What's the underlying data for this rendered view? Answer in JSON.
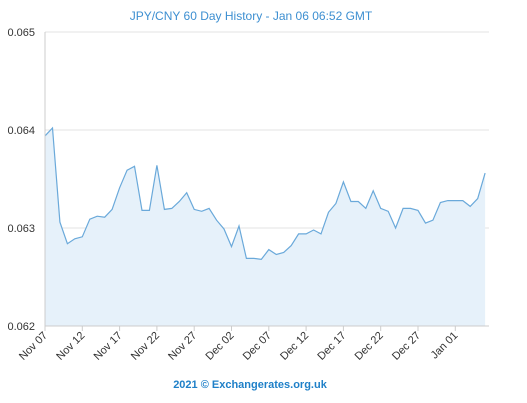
{
  "chart_data": {
    "type": "area",
    "title": "JPY/CNY 60 Day History - Jan 06 06:52 GMT",
    "footer": "2021 © Exchangerates.org.uk",
    "ylim": [
      0.062,
      0.065
    ],
    "yticks": [
      "0.065",
      "0.064",
      "0.063",
      "0.062"
    ],
    "ytick_values": [
      0.065,
      0.064,
      0.063,
      0.062
    ],
    "x_labels": [
      "Nov 07",
      "Nov 12",
      "Nov 17",
      "Nov 22",
      "Nov 27",
      "Dec 02",
      "Dec 07",
      "Dec 12",
      "Dec 17",
      "Dec 22",
      "Dec 27",
      "Jan 01"
    ],
    "x_label_indices": [
      0,
      5,
      10,
      15,
      20,
      25,
      30,
      35,
      40,
      45,
      50,
      55
    ],
    "grid": true,
    "line_color": "#6aa9da",
    "fill_color": "#e6f1fa",
    "series": [
      {
        "values": [
          0.06394,
          0.06402,
          0.06306,
          0.06284,
          0.06289,
          0.06291,
          0.06309,
          0.06312,
          0.06311,
          0.06319,
          0.06341,
          0.06359,
          0.06363,
          0.06318,
          0.06318,
          0.06364,
          0.06319,
          0.0632,
          0.06327,
          0.06336,
          0.06319,
          0.06317,
          0.0632,
          0.06308,
          0.06299,
          0.06281,
          0.06302,
          0.06269,
          0.06269,
          0.06268,
          0.06278,
          0.06273,
          0.06275,
          0.06282,
          0.06294,
          0.06294,
          0.06298,
          0.06294,
          0.06316,
          0.06325,
          0.06347,
          0.06327,
          0.06327,
          0.0632,
          0.06338,
          0.0632,
          0.06317,
          0.063,
          0.0632,
          0.0632,
          0.06318,
          0.06305,
          0.06308,
          0.06326,
          0.06328,
          0.06328,
          0.06328,
          0.06322,
          0.0633,
          0.06356
        ]
      }
    ]
  }
}
